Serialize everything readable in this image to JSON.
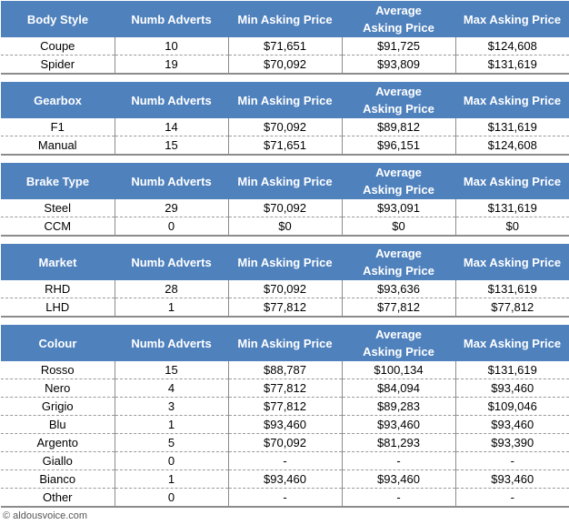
{
  "columns": [
    "Numb Adverts",
    "Min Asking Price",
    "Average Asking Price",
    "Max Asking Price"
  ],
  "tables": [
    {
      "title": "Body Style",
      "rows": [
        [
          "Coupe",
          "10",
          "$71,651",
          "$91,725",
          "$124,608"
        ],
        [
          "Spider",
          "19",
          "$70,092",
          "$93,809",
          "$131,619"
        ]
      ]
    },
    {
      "title": "Gearbox",
      "rows": [
        [
          "F1",
          "14",
          "$70,092",
          "$89,812",
          "$131,619"
        ],
        [
          "Manual",
          "15",
          "$71,651",
          "$96,151",
          "$124,608"
        ]
      ]
    },
    {
      "title": "Brake Type",
      "rows": [
        [
          "Steel",
          "29",
          "$70,092",
          "$93,091",
          "$131,619"
        ],
        [
          "CCM",
          "0",
          "$0",
          "$0",
          "$0"
        ]
      ]
    },
    {
      "title": "Market",
      "rows": [
        [
          "RHD",
          "28",
          "$70,092",
          "$93,636",
          "$131,619"
        ],
        [
          "LHD",
          "1",
          "$77,812",
          "$77,812",
          "$77,812"
        ]
      ]
    },
    {
      "title": "Colour",
      "rows": [
        [
          "Rosso",
          "15",
          "$88,787",
          "$100,134",
          "$131,619"
        ],
        [
          "Nero",
          "4",
          "$77,812",
          "$84,094",
          "$93,460"
        ],
        [
          "Grigio",
          "3",
          "$77,812",
          "$89,283",
          "$109,046"
        ],
        [
          "Blu",
          "1",
          "$93,460",
          "$93,460",
          "$93,460"
        ],
        [
          "Argento",
          "5",
          "$70,092",
          "$81,293",
          "$93,390"
        ],
        [
          "Giallo",
          "0",
          "-",
          "-",
          "-"
        ],
        [
          "Bianco",
          "1",
          "$93,460",
          "$93,460",
          "$93,460"
        ],
        [
          "Other",
          "0",
          "-",
          "-",
          "-"
        ]
      ]
    }
  ],
  "footer": "© aldousvoice.com",
  "colors": {
    "header_bg": "#4f81bd",
    "header_text": "#ffffff"
  }
}
